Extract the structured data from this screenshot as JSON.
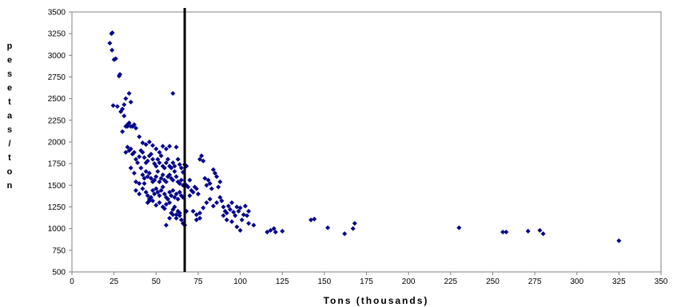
{
  "chart_data": {
    "type": "scatter",
    "xlabel": "Tons (thousands)",
    "ylabel": "pesetas/ton",
    "xlim": [
      0,
      350
    ],
    "ylim": [
      500,
      3500
    ],
    "x_ticks": [
      0,
      25,
      50,
      75,
      100,
      125,
      150,
      175,
      200,
      225,
      250,
      275,
      300,
      325,
      350
    ],
    "y_ticks": [
      500,
      750,
      1000,
      1250,
      1500,
      1750,
      2000,
      2250,
      2500,
      2750,
      3000,
      3250,
      3500
    ],
    "vertical_line_x": 67,
    "grid": false,
    "legend": "none",
    "marker_color": "#00008B",
    "line_color": "#000000",
    "points": [
      [
        22.5,
        3140
      ],
      [
        23.5,
        3250
      ],
      [
        24,
        3260
      ],
      [
        23.8,
        3060
      ],
      [
        25,
        2950
      ],
      [
        26,
        2960
      ],
      [
        28,
        2760
      ],
      [
        28.5,
        2780
      ],
      [
        24.5,
        2420
      ],
      [
        27,
        2410
      ],
      [
        29,
        2350
      ],
      [
        30,
        2380
      ],
      [
        31,
        2430
      ],
      [
        32,
        2500
      ],
      [
        31,
        2300
      ],
      [
        33,
        2180
      ],
      [
        34,
        2560
      ],
      [
        35,
        2460
      ],
      [
        30,
        2120
      ],
      [
        32,
        2180
      ],
      [
        33,
        2200
      ],
      [
        34,
        2220
      ],
      [
        35,
        2180
      ],
      [
        36,
        2180
      ],
      [
        37,
        2200
      ],
      [
        38,
        2160
      ],
      [
        40,
        2060
      ],
      [
        42,
        1990
      ],
      [
        44,
        1970
      ],
      [
        46,
        2000
      ],
      [
        48,
        1960
      ],
      [
        50,
        1920
      ],
      [
        52,
        1880
      ],
      [
        54,
        1950
      ],
      [
        56,
        1920
      ],
      [
        58,
        1950
      ],
      [
        60,
        2560
      ],
      [
        32,
        1880
      ],
      [
        33,
        1940
      ],
      [
        34,
        1900
      ],
      [
        35,
        1920
      ],
      [
        36,
        1860
      ],
      [
        37,
        1880
      ],
      [
        38,
        1800
      ],
      [
        39,
        1760
      ],
      [
        40,
        1830
      ],
      [
        41,
        1900
      ],
      [
        42,
        1880
      ],
      [
        43,
        1820
      ],
      [
        44,
        1760
      ],
      [
        45,
        1780
      ],
      [
        46,
        1840
      ],
      [
        47,
        1860
      ],
      [
        48,
        1800
      ],
      [
        49,
        1750
      ],
      [
        50,
        1720
      ],
      [
        51,
        1800
      ],
      [
        52,
        1760
      ],
      [
        53,
        1840
      ],
      [
        54,
        1720
      ],
      [
        55,
        1700
      ],
      [
        56,
        1760
      ],
      [
        57,
        1800
      ],
      [
        58,
        1720
      ],
      [
        59,
        1700
      ],
      [
        60,
        1760
      ],
      [
        61,
        1720
      ],
      [
        62,
        1940
      ],
      [
        63,
        1800
      ],
      [
        64,
        1740
      ],
      [
        65,
        1700
      ],
      [
        66,
        1650
      ],
      [
        67,
        1740
      ],
      [
        68,
        1720
      ],
      [
        35,
        1700
      ],
      [
        37,
        1640
      ],
      [
        38,
        1540
      ],
      [
        40,
        1520
      ],
      [
        41,
        1700
      ],
      [
        42,
        1620
      ],
      [
        43,
        1580
      ],
      [
        44,
        1660
      ],
      [
        45,
        1600
      ],
      [
        46,
        1640
      ],
      [
        47,
        1580
      ],
      [
        48,
        1540
      ],
      [
        49,
        1560
      ],
      [
        50,
        1600
      ],
      [
        51,
        1660
      ],
      [
        52,
        1540
      ],
      [
        53,
        1580
      ],
      [
        54,
        1620
      ],
      [
        55,
        1560
      ],
      [
        56,
        1540
      ],
      [
        57,
        1600
      ],
      [
        58,
        1620
      ],
      [
        59,
        1580
      ],
      [
        60,
        1560
      ],
      [
        61,
        1660
      ],
      [
        62,
        1600
      ],
      [
        63,
        1540
      ],
      [
        64,
        1520
      ],
      [
        65,
        1560
      ],
      [
        66,
        1500
      ],
      [
        68,
        1500
      ],
      [
        69,
        1480
      ],
      [
        70,
        1560
      ],
      [
        38,
        1440
      ],
      [
        40,
        1400
      ],
      [
        42,
        1460
      ],
      [
        43,
        1520
      ],
      [
        44,
        1420
      ],
      [
        45,
        1380
      ],
      [
        46,
        1320
      ],
      [
        47,
        1360
      ],
      [
        48,
        1440
      ],
      [
        49,
        1400
      ],
      [
        50,
        1460
      ],
      [
        51,
        1420
      ],
      [
        52,
        1380
      ],
      [
        53,
        1440
      ],
      [
        54,
        1480
      ],
      [
        55,
        1400
      ],
      [
        56,
        1360
      ],
      [
        57,
        1340
      ],
      [
        58,
        1420
      ],
      [
        59,
        1380
      ],
      [
        60,
        1440
      ],
      [
        61,
        1360
      ],
      [
        62,
        1400
      ],
      [
        63,
        1340
      ],
      [
        64,
        1420
      ],
      [
        65,
        1380
      ],
      [
        66,
        1360
      ],
      [
        45,
        1300
      ],
      [
        46,
        1340
      ],
      [
        48,
        1320
      ],
      [
        50,
        1270
      ],
      [
        52,
        1300
      ],
      [
        54,
        1250
      ],
      [
        55,
        1230
      ],
      [
        56,
        1280
      ],
      [
        58,
        1300
      ],
      [
        59,
        1180
      ],
      [
        60,
        1220
      ],
      [
        61,
        1250
      ],
      [
        62,
        1160
      ],
      [
        63,
        1200
      ],
      [
        64,
        1150
      ],
      [
        65,
        1100
      ],
      [
        66,
        1060
      ],
      [
        67,
        1040
      ],
      [
        56,
        1040
      ],
      [
        58,
        1120
      ],
      [
        60,
        1160
      ],
      [
        62,
        1120
      ],
      [
        64,
        1180
      ],
      [
        68,
        1200
      ],
      [
        70,
        1380
      ],
      [
        71,
        1440
      ],
      [
        72,
        1420
      ],
      [
        73,
        1480
      ],
      [
        74,
        1460
      ],
      [
        75,
        1400
      ],
      [
        76,
        1800
      ],
      [
        77,
        1840
      ],
      [
        78,
        1780
      ],
      [
        79,
        1580
      ],
      [
        80,
        1500
      ],
      [
        81,
        1560
      ],
      [
        82,
        1520
      ],
      [
        83,
        1460
      ],
      [
        84,
        1680
      ],
      [
        85,
        1640
      ],
      [
        86,
        1600
      ],
      [
        87,
        1480
      ],
      [
        88,
        1540
      ],
      [
        72,
        1200
      ],
      [
        74,
        1160
      ],
      [
        76,
        1180
      ],
      [
        78,
        1240
      ],
      [
        80,
        1300
      ],
      [
        82,
        1340
      ],
      [
        84,
        1260
      ],
      [
        86,
        1300
      ],
      [
        88,
        1360
      ],
      [
        89,
        1320
      ],
      [
        90,
        1250
      ],
      [
        91,
        1200
      ],
      [
        92,
        1180
      ],
      [
        93,
        1260
      ],
      [
        94,
        1220
      ],
      [
        95,
        1300
      ],
      [
        96,
        1190
      ],
      [
        97,
        1150
      ],
      [
        98,
        1250
      ],
      [
        99,
        1200
      ],
      [
        100,
        1240
      ],
      [
        101,
        1100
      ],
      [
        102,
        1160
      ],
      [
        103,
        1260
      ],
      [
        104,
        1150
      ],
      [
        105,
        1200
      ],
      [
        74,
        1100
      ],
      [
        76,
        1120
      ],
      [
        90,
        1150
      ],
      [
        92,
        1100
      ],
      [
        95,
        1080
      ],
      [
        98,
        1020
      ],
      [
        100,
        980
      ],
      [
        105,
        1060
      ],
      [
        108,
        1040
      ],
      [
        116,
        960
      ],
      [
        118,
        980
      ],
      [
        120,
        1000
      ],
      [
        121,
        960
      ],
      [
        125,
        970
      ],
      [
        142,
        1100
      ],
      [
        144,
        1110
      ],
      [
        152,
        1010
      ],
      [
        162,
        940
      ],
      [
        167,
        1000
      ],
      [
        168,
        1060
      ],
      [
        230,
        1010
      ],
      [
        256,
        960
      ],
      [
        258,
        960
      ],
      [
        271,
        970
      ],
      [
        278,
        980
      ],
      [
        280,
        940
      ],
      [
        325,
        860
      ]
    ]
  }
}
